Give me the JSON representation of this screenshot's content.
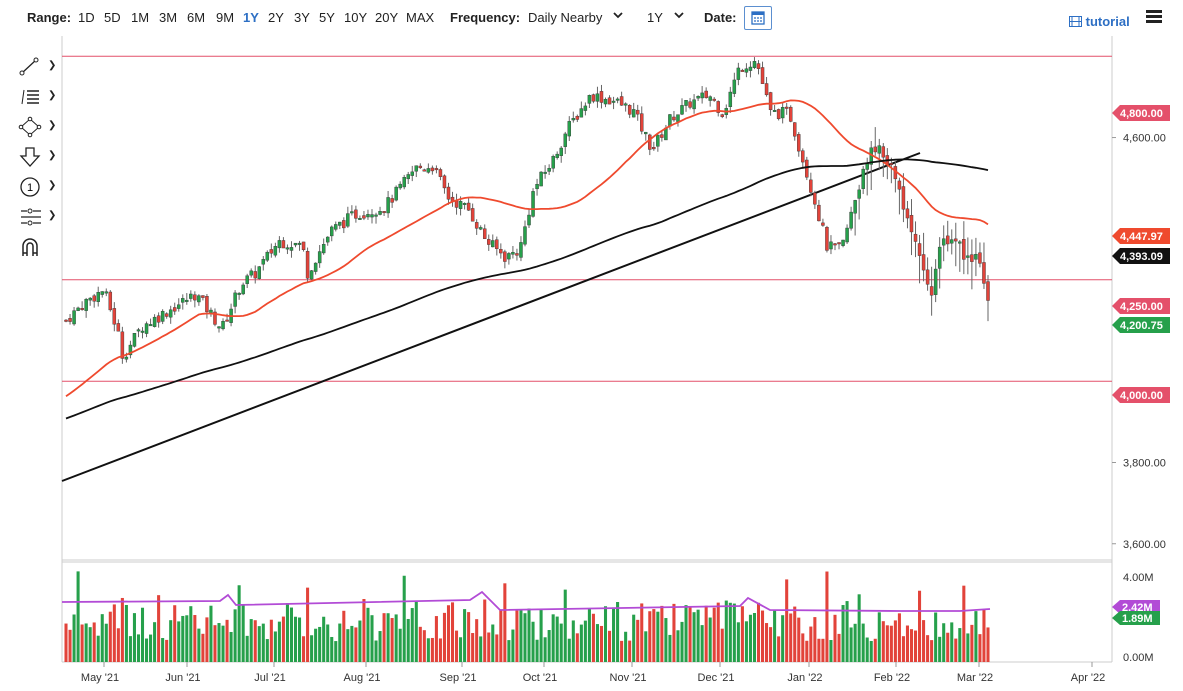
{
  "toolbar": {
    "range_label": "Range:",
    "ranges": [
      "1D",
      "5D",
      "1M",
      "3M",
      "6M",
      "9M",
      "1Y",
      "2Y",
      "3Y",
      "5Y",
      "10Y",
      "20Y",
      "MAX"
    ],
    "active_range": "1Y",
    "frequency_label": "Frequency:",
    "frequency_value": "Daily Nearby",
    "period_value": "1Y",
    "date_label": "Date:",
    "tutorial_label": "tutorial",
    "accent_color": "#2d6fc4"
  },
  "tools": [
    {
      "icon": "line-tool-icon"
    },
    {
      "icon": "fibonacci-tool-icon"
    },
    {
      "icon": "shapes-tool-icon"
    },
    {
      "icon": "arrow-down-tool-icon"
    },
    {
      "icon": "text-annotation-icon",
      "glyph": "1"
    },
    {
      "icon": "measure-tool-icon"
    },
    {
      "icon": "magnet-icon"
    }
  ],
  "chart_data": {
    "type": "candlestick",
    "price_axis": {
      "ticks": [
        "4,600.00",
        "3,800.00",
        "3,600.00"
      ],
      "ylim": [
        3560,
        4850
      ]
    },
    "x_axis": {
      "labels": [
        "May '21",
        "Jun '21",
        "Jul '21",
        "Aug '21",
        "Sep '21",
        "Oct '21",
        "Nov '21",
        "Dec '21",
        "Jan '22",
        "Feb '22",
        "Mar '22",
        "Apr '22"
      ]
    },
    "price_tags": [
      {
        "label": "4,800.00",
        "color": "#e4506a"
      },
      {
        "label": "4,447.97",
        "color": "#ef4a2e"
      },
      {
        "label": "4,393.09",
        "color": "#111111"
      },
      {
        "label": "4,250.00",
        "color": "#e4506a"
      },
      {
        "label": "4,200.75",
        "color": "#26a04b"
      },
      {
        "label": "4,000.00",
        "color": "#e4506a"
      }
    ],
    "horizontal_lines": [
      4800,
      4250,
      4000
    ],
    "volume": {
      "ticks": [
        "4.00M",
        "0.00M"
      ],
      "tags": [
        {
          "label": "2.42M",
          "color": "#b24bd6"
        },
        {
          "label": "1.89M",
          "color": "#26a04b"
        }
      ]
    },
    "colors": {
      "up": "#26a04b",
      "down": "#e2433a",
      "ma50": "#ef4a2e",
      "ma200": "#111111",
      "volume_avg": "#b24bd6"
    }
  }
}
